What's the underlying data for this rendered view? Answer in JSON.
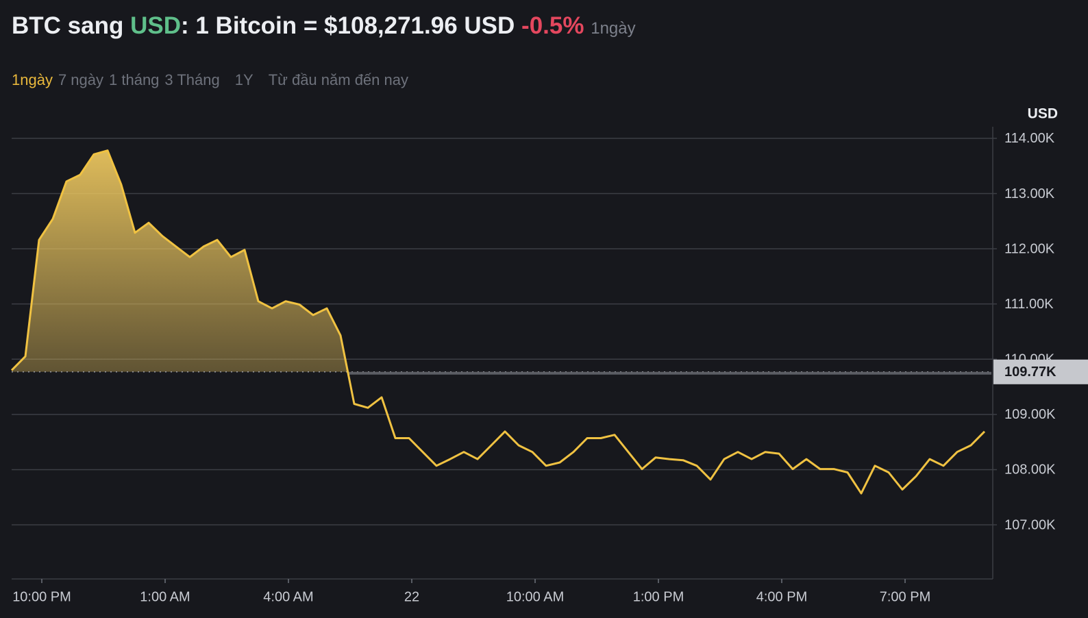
{
  "header": {
    "pair_prefix": "BTC sang ",
    "quote": "USD",
    "rate": ": 1 Bitcoin = $108,271.96 USD",
    "change": "-0.5%",
    "period": "1ngày"
  },
  "tabs": [
    "1ngày",
    "7 ngày",
    "1 tháng",
    "3 Tháng",
    "1Y",
    "Từ đầu năm đến nay"
  ],
  "chart_data": {
    "type": "line",
    "y_axis_label": "USD",
    "values": [
      109800,
      110050,
      112160,
      112540,
      113220,
      113340,
      113710,
      113780,
      113160,
      112290,
      112470,
      112230,
      112040,
      111850,
      112040,
      112160,
      111850,
      111980,
      111050,
      110920,
      111050,
      110990,
      110800,
      110920,
      110430,
      109190,
      109120,
      109310,
      108570,
      108570,
      108320,
      108070,
      108190,
      108320,
      108190,
      108440,
      108690,
      108440,
      108320,
      108070,
      108130,
      108320,
      108570,
      108570,
      108630,
      108320,
      108010,
      108220,
      108190,
      108170,
      108070,
      107820,
      108190,
      108320,
      108190,
      108320,
      108290,
      108010,
      108190,
      108010,
      108010,
      107950,
      107570,
      108070,
      107950,
      107640,
      107880,
      108190,
      108070,
      108320,
      108440,
      108690
    ],
    "color": "#f0c242",
    "ylim": [
      106020,
      114210
    ],
    "yticks": [
      {
        "value": 107000,
        "label": "107.00K"
      },
      {
        "value": 108000,
        "label": "108.00K"
      },
      {
        "value": 109000,
        "label": "109.00K"
      },
      {
        "value": 110000,
        "label": "110.00K"
      },
      {
        "value": 111000,
        "label": "111.00K"
      },
      {
        "value": 112000,
        "label": "112.00K"
      },
      {
        "value": 113000,
        "label": "113.00K"
      },
      {
        "value": 114000,
        "label": "114.00K"
      }
    ],
    "xlim": [
      0,
      71.5
    ],
    "xticks": [
      {
        "value": 2.2,
        "label": "10:00 PM"
      },
      {
        "value": 11.2,
        "label": "1:00 AM"
      },
      {
        "value": 20.2,
        "label": "4:00 AM"
      },
      {
        "value": 29.2,
        "label": "22"
      },
      {
        "value": 38.2,
        "label": "10:00 AM"
      },
      {
        "value": 47.2,
        "label": "1:00 PM"
      },
      {
        "value": 56.2,
        "label": "4:00 PM"
      },
      {
        "value": 65.2,
        "label": "7:00 PM"
      }
    ],
    "baseline": {
      "value": 109770,
      "label": "109.77K"
    },
    "grid": true
  }
}
